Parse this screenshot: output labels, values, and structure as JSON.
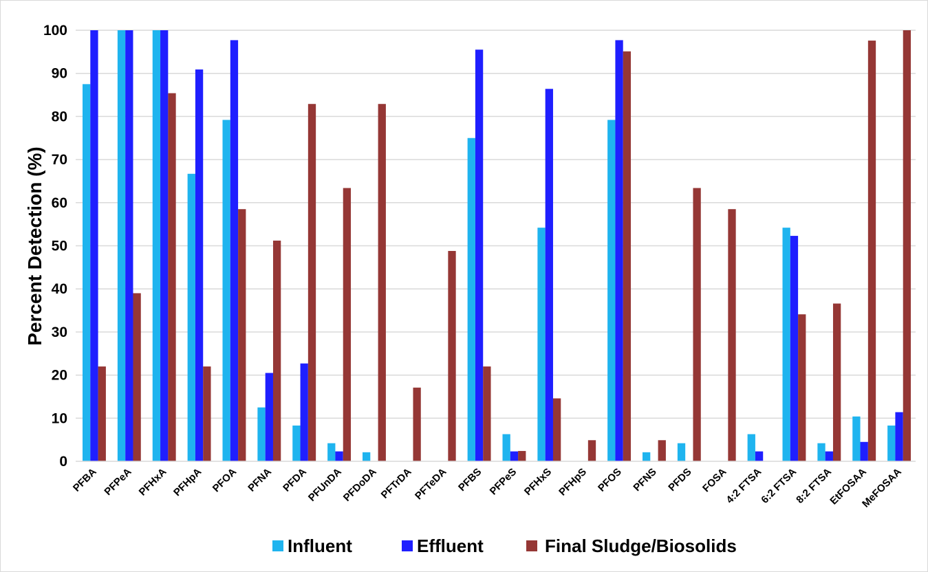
{
  "chart_data": {
    "type": "bar",
    "title": "",
    "xlabel": "",
    "ylabel": "Percent Detection (%)",
    "ylim": [
      0,
      100
    ],
    "yticks": [
      0,
      10,
      20,
      30,
      40,
      50,
      60,
      70,
      80,
      90,
      100
    ],
    "grid": true,
    "legend_position": "bottom",
    "categories": [
      "PFBA",
      "PFPeA",
      "PFHxA",
      "PFHpA",
      "PFOA",
      "PFNA",
      "PFDA",
      "PFUnDA",
      "PFDoDA",
      "PFTrDA",
      "PFTeDA",
      "PFBS",
      "PFPeS",
      "PFHxS",
      "PFHpS",
      "PFOS",
      "PFNS",
      "PFDS",
      "FOSA",
      "4:2 FTSA",
      "6:2 FTSA",
      "8:2 FTSA",
      "EtFOSAA",
      "MeFOSAA"
    ],
    "series": [
      {
        "name": "Influent",
        "color": "#1fb4ef",
        "values": [
          87.5,
          100,
          100,
          66.7,
          79.2,
          12.5,
          8.3,
          4.2,
          2.1,
          0,
          0,
          75,
          6.3,
          54.2,
          0,
          79.2,
          2.1,
          4.2,
          0,
          6.3,
          54.2,
          4.2,
          10.4,
          8.3
        ]
      },
      {
        "name": "Effluent",
        "color": "#1f1fff",
        "values": [
          100,
          100,
          100,
          90.9,
          97.7,
          20.5,
          22.7,
          2.3,
          0,
          0,
          0,
          95.5,
          2.3,
          86.4,
          0,
          97.7,
          0,
          0,
          0,
          2.3,
          52.3,
          2.3,
          4.5,
          11.4
        ]
      },
      {
        "name": "Final Sludge/Biosolids",
        "color": "#953735",
        "values": [
          22,
          39,
          85.4,
          22,
          58.5,
          51.2,
          82.9,
          63.4,
          82.9,
          17.1,
          48.8,
          22,
          2.4,
          14.6,
          4.9,
          95.1,
          4.9,
          63.4,
          58.5,
          0,
          34.1,
          36.6,
          97.6,
          100
        ]
      }
    ]
  }
}
